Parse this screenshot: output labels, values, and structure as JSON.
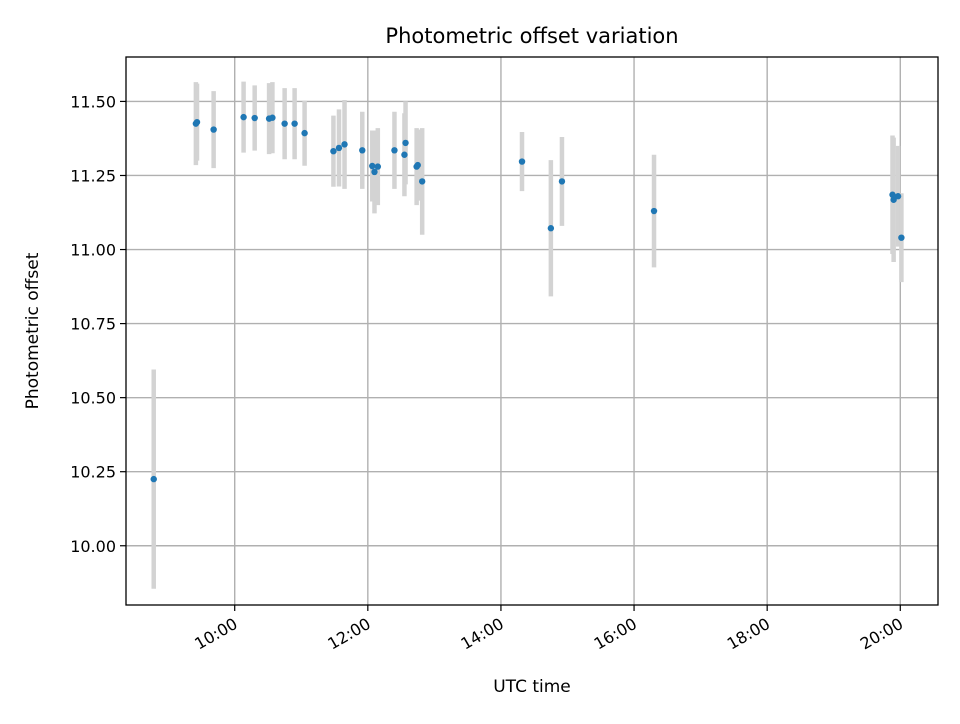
{
  "chart_data": {
    "type": "scatter",
    "title": "Photometric offset variation",
    "xlabel": "UTC time",
    "ylabel": "Photometric offset",
    "x_axis_type": "time",
    "xlim": [
      "08:22",
      "20:34"
    ],
    "ylim": [
      9.8,
      11.65
    ],
    "x_ticks": [
      "10:00",
      "12:00",
      "14:00",
      "16:00",
      "18:00",
      "20:00"
    ],
    "y_ticks": [
      "10.00",
      "10.25",
      "10.50",
      "10.75",
      "11.00",
      "11.25",
      "11.50"
    ],
    "grid": true,
    "legend": "none",
    "colors": {
      "point": "#1f77b4",
      "error_bar": "#d3d3d3",
      "grid": "#b0b0b0"
    },
    "series": [
      {
        "points": [
          {
            "x": "08:47",
            "y": 10.225,
            "yerr": 0.37
          },
          {
            "x": "09:25",
            "y": 11.425,
            "yerr": 0.14
          },
          {
            "x": "09:26",
            "y": 11.43,
            "yerr": 0.13
          },
          {
            "x": "09:41",
            "y": 11.405,
            "yerr": 0.13
          },
          {
            "x": "10:08",
            "y": 11.447,
            "yerr": 0.12
          },
          {
            "x": "10:18",
            "y": 11.444,
            "yerr": 0.11
          },
          {
            "x": "10:31",
            "y": 11.442,
            "yerr": 0.12
          },
          {
            "x": "10:34",
            "y": 11.445,
            "yerr": 0.12
          },
          {
            "x": "10:45",
            "y": 11.425,
            "yerr": 0.12
          },
          {
            "x": "10:54",
            "y": 11.425,
            "yerr": 0.12
          },
          {
            "x": "11:03",
            "y": 11.393,
            "yerr": 0.11
          },
          {
            "x": "11:29",
            "y": 11.332,
            "yerr": 0.12
          },
          {
            "x": "11:34",
            "y": 11.343,
            "yerr": 0.13
          },
          {
            "x": "11:39",
            "y": 11.355,
            "yerr": 0.15
          },
          {
            "x": "11:55",
            "y": 11.335,
            "yerr": 0.13
          },
          {
            "x": "12:04",
            "y": 11.282,
            "yerr": 0.12
          },
          {
            "x": "12:06",
            "y": 11.262,
            "yerr": 0.14
          },
          {
            "x": "12:09",
            "y": 11.28,
            "yerr": 0.13
          },
          {
            "x": "12:24",
            "y": 11.335,
            "yerr": 0.13
          },
          {
            "x": "12:33",
            "y": 11.32,
            "yerr": 0.14
          },
          {
            "x": "12:34",
            "y": 11.36,
            "yerr": 0.14
          },
          {
            "x": "12:44",
            "y": 11.28,
            "yerr": 0.13
          },
          {
            "x": "12:45",
            "y": 11.285,
            "yerr": 0.12
          },
          {
            "x": "12:49",
            "y": 11.23,
            "yerr": 0.18
          },
          {
            "x": "14:19",
            "y": 11.297,
            "yerr": 0.1
          },
          {
            "x": "14:45",
            "y": 11.072,
            "yerr": 0.23
          },
          {
            "x": "14:55",
            "y": 11.23,
            "yerr": 0.15
          },
          {
            "x": "16:18",
            "y": 11.13,
            "yerr": 0.19
          },
          {
            "x": "19:53",
            "y": 11.185,
            "yerr": 0.2
          },
          {
            "x": "19:54",
            "y": 11.168,
            "yerr": 0.21
          },
          {
            "x": "19:58",
            "y": 11.18,
            "yerr": 0.17
          },
          {
            "x": "20:01",
            "y": 11.04,
            "yerr": 0.15
          }
        ]
      }
    ]
  }
}
